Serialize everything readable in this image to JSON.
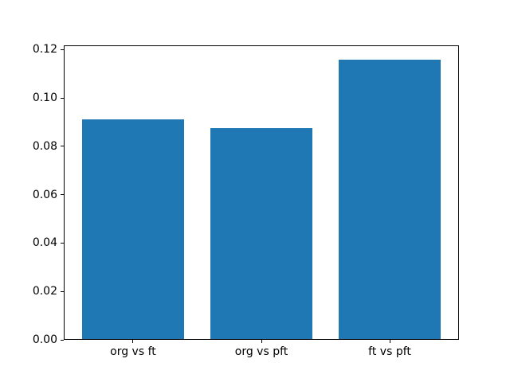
{
  "chart_data": {
    "type": "bar",
    "title": "",
    "xlabel": "",
    "ylabel": "",
    "categories": [
      "org vs ft",
      "org vs pft",
      "ft vs pft"
    ],
    "values": [
      0.0912,
      0.0875,
      0.116
    ],
    "bar_color": "#1f77b4",
    "ylim": [
      0,
      0.1218
    ],
    "yticks": [
      0,
      0.02,
      0.04,
      0.06,
      0.08,
      0.1,
      0.12
    ],
    "yticklabels": [
      "0.00",
      "0.02",
      "0.04",
      "0.06",
      "0.08",
      "0.10",
      "0.12"
    ],
    "grid": false,
    "legend": null,
    "axis_color": "#000000",
    "background_color": "#ffffff"
  }
}
